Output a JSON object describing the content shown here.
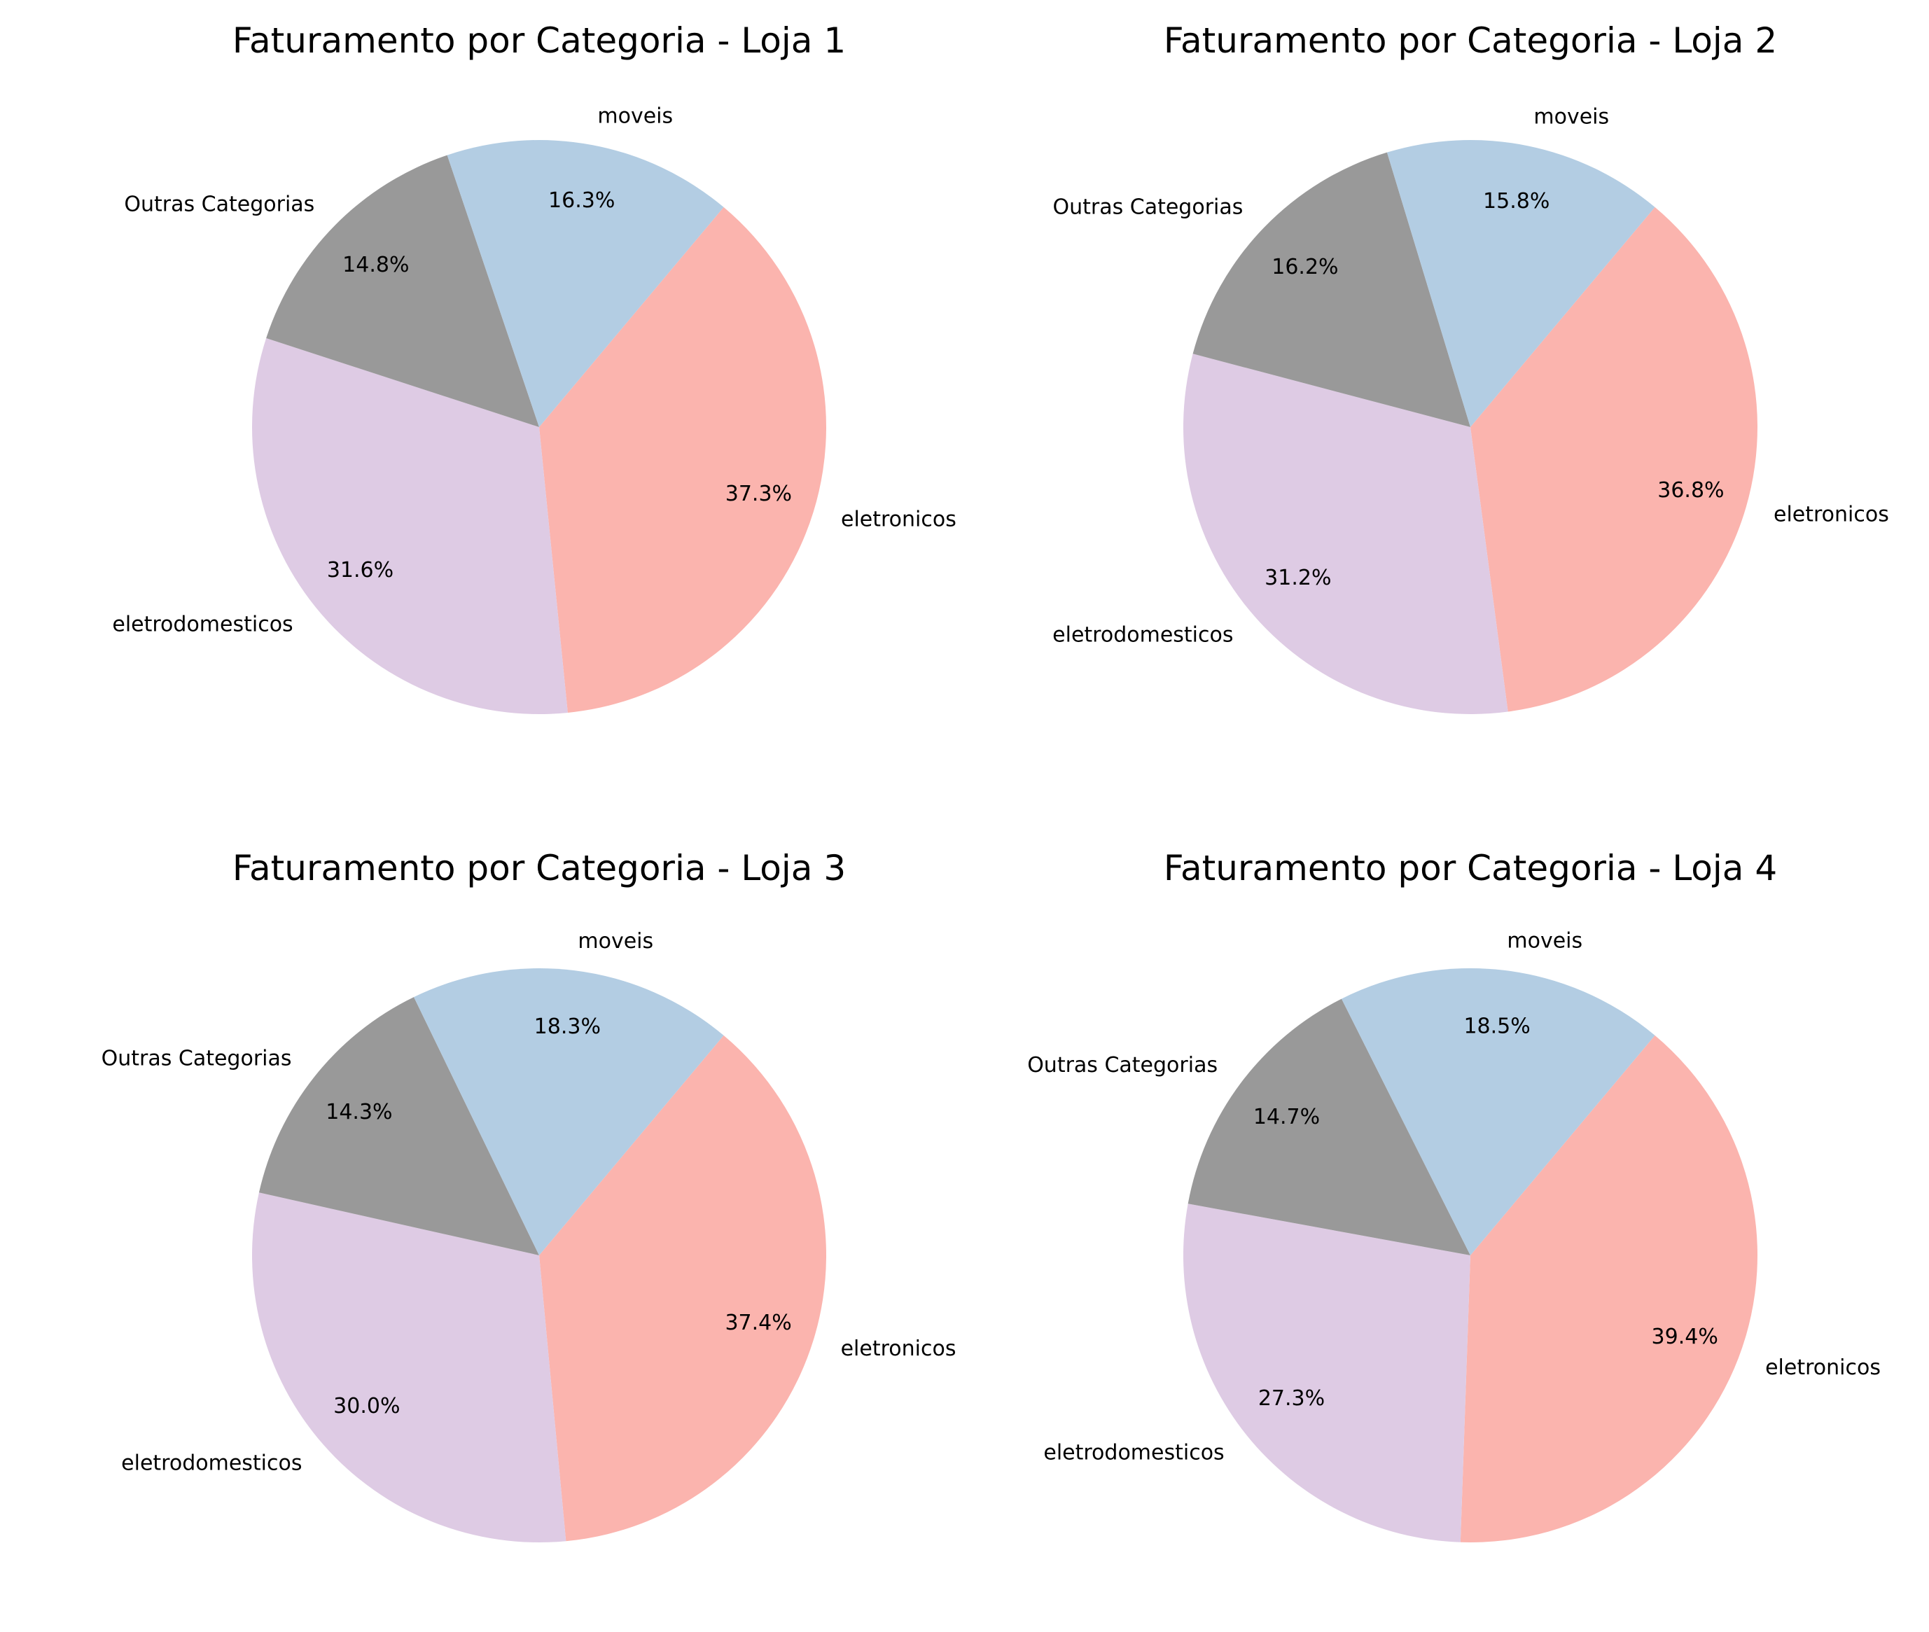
{
  "colors": {
    "eletronicos": "#fbb4ae",
    "eletrodomesticos": "#decbe4",
    "Outras Categorias": "#999999",
    "moveis": "#b3cde3"
  },
  "chart_data": [
    {
      "type": "pie",
      "title": "Faturamento por Categoria - Loja 1",
      "slices": [
        {
          "label": "eletronicos",
          "value": 37.3,
          "pct_label": "37.3%"
        },
        {
          "label": "eletrodomesticos",
          "value": 31.6,
          "pct_label": "31.6%"
        },
        {
          "label": "Outras Categorias",
          "value": 14.8,
          "pct_label": "14.8%"
        },
        {
          "label": "moveis",
          "value": 16.3,
          "pct_label": "16.3%"
        }
      ]
    },
    {
      "type": "pie",
      "title": "Faturamento por Categoria - Loja 2",
      "slices": [
        {
          "label": "eletronicos",
          "value": 36.8,
          "pct_label": "36.8%"
        },
        {
          "label": "eletrodomesticos",
          "value": 31.2,
          "pct_label": "31.2%"
        },
        {
          "label": "Outras Categorias",
          "value": 16.2,
          "pct_label": "16.2%"
        },
        {
          "label": "moveis",
          "value": 15.8,
          "pct_label": "15.8%"
        }
      ]
    },
    {
      "type": "pie",
      "title": "Faturamento por Categoria - Loja 3",
      "slices": [
        {
          "label": "eletronicos",
          "value": 37.4,
          "pct_label": "37.4%"
        },
        {
          "label": "eletrodomesticos",
          "value": 30.0,
          "pct_label": "30.0%"
        },
        {
          "label": "Outras Categorias",
          "value": 14.3,
          "pct_label": "14.3%"
        },
        {
          "label": "moveis",
          "value": 18.3,
          "pct_label": "18.3%"
        }
      ]
    },
    {
      "type": "pie",
      "title": "Faturamento por Categoria - Loja 4",
      "slices": [
        {
          "label": "eletronicos",
          "value": 39.4,
          "pct_label": "39.4%"
        },
        {
          "label": "eletrodomesticos",
          "value": 27.3,
          "pct_label": "27.3%"
        },
        {
          "label": "Outras Categorias",
          "value": 14.7,
          "pct_label": "14.7%"
        },
        {
          "label": "moveis",
          "value": 18.5,
          "pct_label": "18.5%"
        }
      ]
    }
  ]
}
